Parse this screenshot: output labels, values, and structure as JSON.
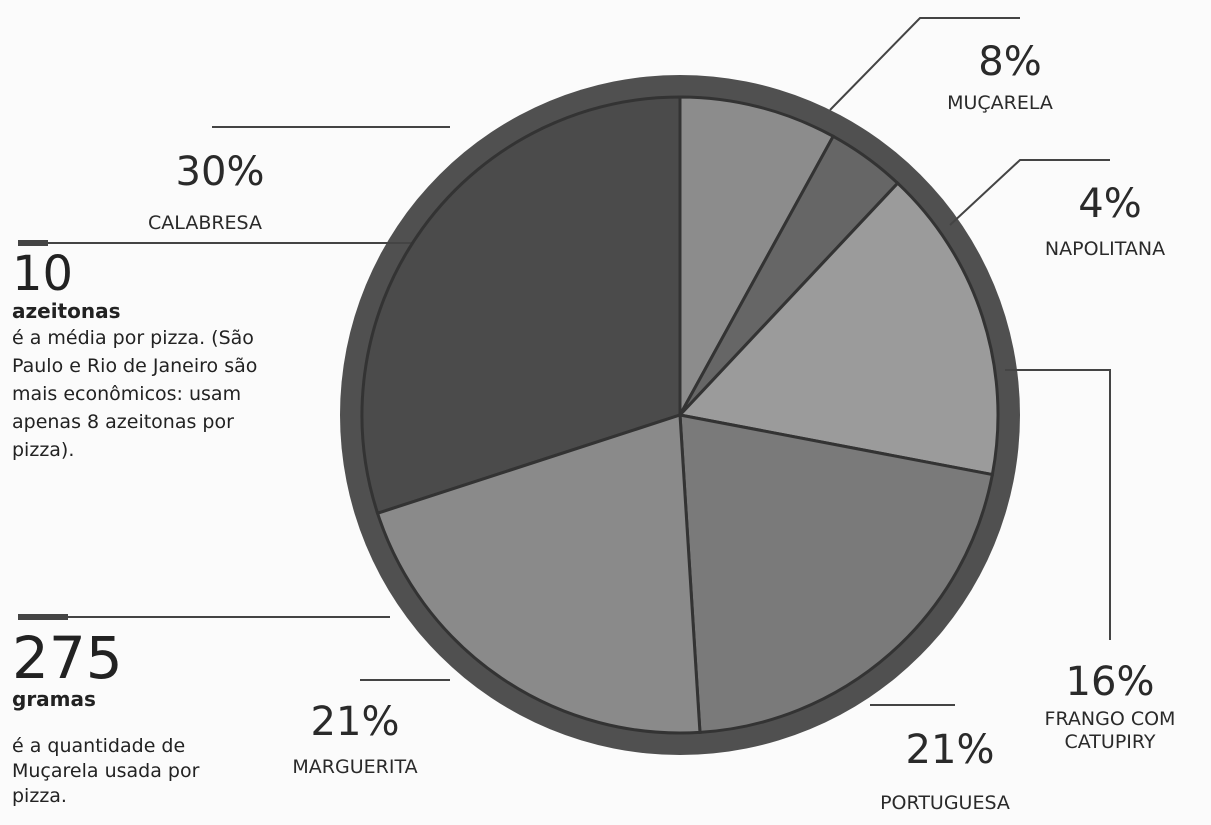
{
  "chart_data": {
    "type": "pie",
    "categories": [
      "CALABRESA",
      "MUÇARELA",
      "NAPOLITANA",
      "FRANGO COM CATUPIRY",
      "PORTUGUESA",
      "MARGUERITA"
    ],
    "values": [
      30,
      8,
      4,
      16,
      21,
      21
    ],
    "value_labels": [
      "30%",
      "8%",
      "4%",
      "16%",
      "21%",
      "21%"
    ],
    "colors": [
      "#4b4b4b",
      "#8c8c8c",
      "#666666",
      "#9b9b9b",
      "#7a7a7a",
      "#8a8a8a"
    ],
    "annotations": [
      {
        "number": "10",
        "unit": "azeitonas",
        "text": "é a média por pizza. (São Paulo e Rio de Janeiro são mais econômicos: usam apenas 8 azeitonas por pizza)."
      },
      {
        "number": "275",
        "unit": "gramas",
        "text": "é a quantidade de Muçarela usada por pizza."
      }
    ]
  }
}
